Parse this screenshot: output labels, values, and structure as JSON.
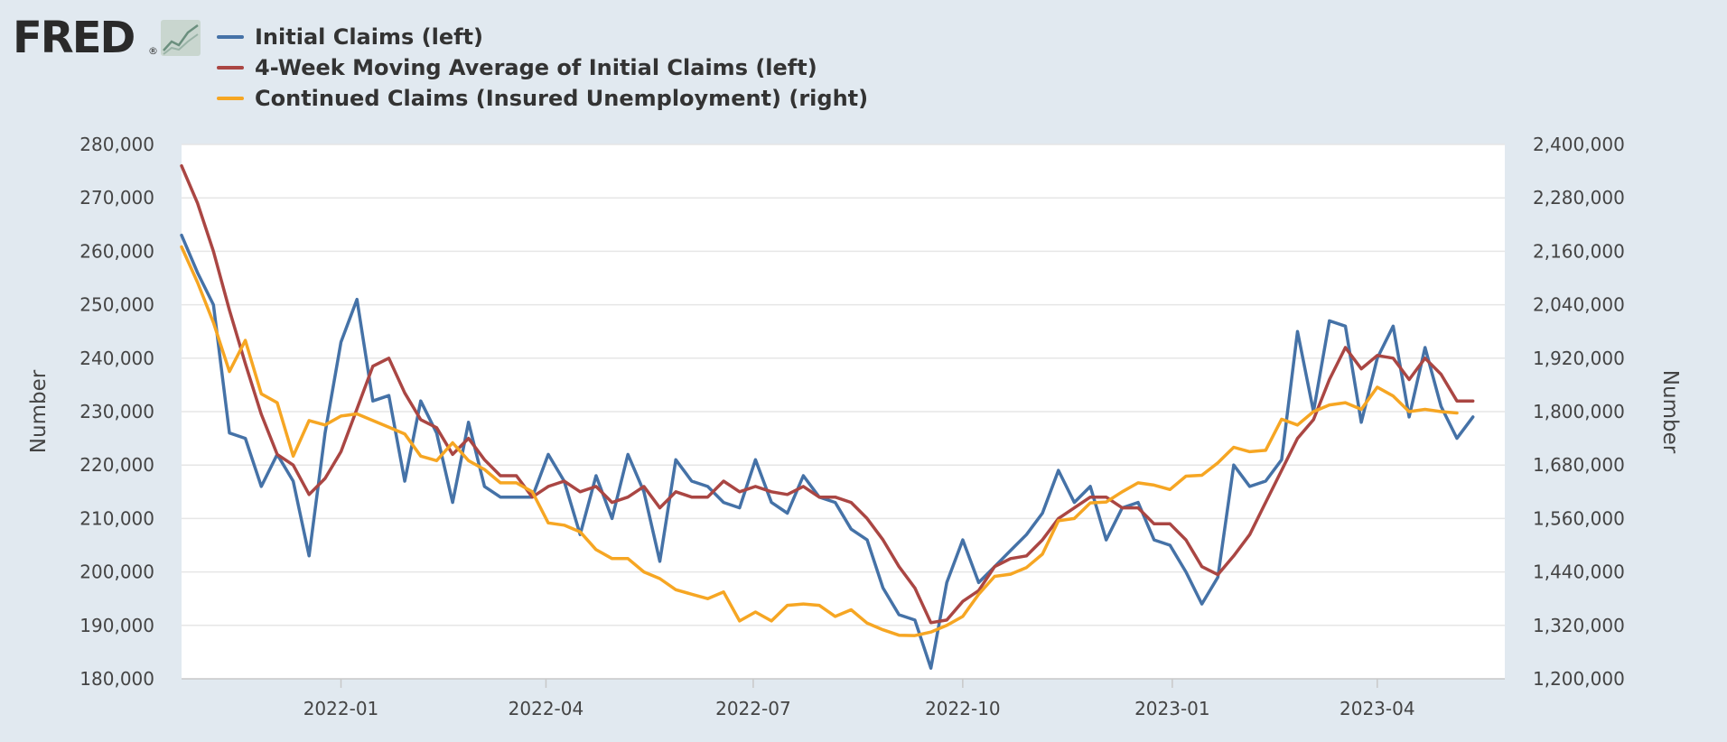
{
  "logo": {
    "text": "FRED",
    "reg": "®"
  },
  "chart_data": {
    "type": "line",
    "title": "",
    "legend_position": "top-left",
    "grid": true,
    "y_left": {
      "label": "Number",
      "lim": [
        180000,
        280000
      ],
      "ticks": [
        180000,
        190000,
        200000,
        210000,
        220000,
        230000,
        240000,
        250000,
        260000,
        270000,
        280000
      ],
      "tick_labels": [
        "180,000",
        "190,000",
        "200,000",
        "210,000",
        "220,000",
        "230,000",
        "240,000",
        "250,000",
        "260,000",
        "270,000",
        "280,000"
      ]
    },
    "y_right": {
      "label": "Number",
      "lim": [
        1200000,
        2400000
      ],
      "ticks": [
        1200000,
        1320000,
        1440000,
        1560000,
        1680000,
        1800000,
        1920000,
        2040000,
        2160000,
        2280000,
        2400000
      ],
      "tick_labels": [
        "1,200,000",
        "1,320,000",
        "1,440,000",
        "1,560,000",
        "1,680,000",
        "1,800,000",
        "1,920,000",
        "2,040,000",
        "2,160,000",
        "2,280,000",
        "2,400,000"
      ]
    },
    "x_range": [
      "2021-10-23",
      "2023-05-27"
    ],
    "x_ticks": [
      "2022-01-01",
      "2022-04-01",
      "2022-07-01",
      "2022-10-01",
      "2023-01-01",
      "2023-04-01"
    ],
    "x_tick_labels": [
      "2022-01",
      "2022-04",
      "2022-07",
      "2022-10",
      "2023-01",
      "2023-04"
    ],
    "start_date": "2021-10-23",
    "series": [
      {
        "name": "Initial Claims (left)",
        "axis": "left",
        "color": "#4572a7",
        "values": [
          263000,
          256000,
          250000,
          226000,
          225000,
          216000,
          222000,
          217000,
          203000,
          226000,
          243000,
          251000,
          232000,
          233000,
          217000,
          232000,
          226000,
          213000,
          228000,
          216000,
          214000,
          214000,
          214000,
          222000,
          217000,
          207000,
          218000,
          210000,
          222000,
          215000,
          202000,
          221000,
          217000,
          216000,
          213000,
          212000,
          221000,
          213000,
          211000,
          218000,
          214000,
          213000,
          208000,
          206000,
          197000,
          192000,
          191000,
          182000,
          198000,
          206000,
          198000,
          201000,
          204000,
          207000,
          211000,
          219000,
          213000,
          216000,
          206000,
          212000,
          213000,
          206000,
          205000,
          200000,
          194000,
          199000,
          220000,
          216000,
          217000,
          221000,
          245000,
          230000,
          247000,
          246000,
          228000,
          240000,
          246000,
          229000,
          242000,
          231000,
          225000,
          229000
        ]
      },
      {
        "name": "4-Week Moving Average of Initial Claims (left)",
        "axis": "left",
        "color": "#aa4643",
        "values": [
          276000,
          269000,
          260000,
          249000,
          239000,
          229500,
          222000,
          220000,
          214500,
          217500,
          222500,
          230500,
          238500,
          240000,
          233500,
          228500,
          227000,
          222000,
          225000,
          221000,
          218000,
          218000,
          214000,
          216000,
          217000,
          215000,
          216000,
          213000,
          214000,
          216000,
          212000,
          215000,
          214000,
          214000,
          217000,
          215000,
          216000,
          215000,
          214500,
          216000,
          214000,
          214000,
          213000,
          210000,
          206000,
          201000,
          197000,
          190500,
          191000,
          194500,
          196500,
          201000,
          202500,
          203000,
          206000,
          210000,
          212000,
          214000,
          214000,
          212000,
          212000,
          209000,
          209000,
          206000,
          201000,
          199500,
          203000,
          207000,
          213000,
          219000,
          225000,
          228500,
          236000,
          242000,
          238000,
          240500,
          240000,
          236000,
          240000,
          237000,
          232000,
          232000
        ]
      },
      {
        "name": "Continued Claims (Insured Unemployment) (right)",
        "axis": "right",
        "color": "#f6a623",
        "values": [
          2170000,
          2090000,
          2000000,
          1890000,
          1960000,
          1840000,
          1820000,
          1700000,
          1780000,
          1770000,
          1790000,
          1795000,
          1780000,
          1765000,
          1750000,
          1700000,
          1690000,
          1730000,
          1690000,
          1670000,
          1640000,
          1640000,
          1620000,
          1550000,
          1545000,
          1530000,
          1490000,
          1470000,
          1470000,
          1440000,
          1425000,
          1400000,
          1390000,
          1380000,
          1395000,
          1330000,
          1350000,
          1330000,
          1365000,
          1368000,
          1365000,
          1340000,
          1355000,
          1325000,
          1310000,
          1298000,
          1297000,
          1305000,
          1320000,
          1340000,
          1390000,
          1430000,
          1435000,
          1450000,
          1480000,
          1555000,
          1560000,
          1595000,
          1597000,
          1620000,
          1640000,
          1635000,
          1625000,
          1655000,
          1657000,
          1685000,
          1720000,
          1710000,
          1713000,
          1783000,
          1770000,
          1800000,
          1815000,
          1820000,
          1805000,
          1855000,
          1835000,
          1800000,
          1805000,
          1800000,
          1797000
        ]
      }
    ]
  }
}
